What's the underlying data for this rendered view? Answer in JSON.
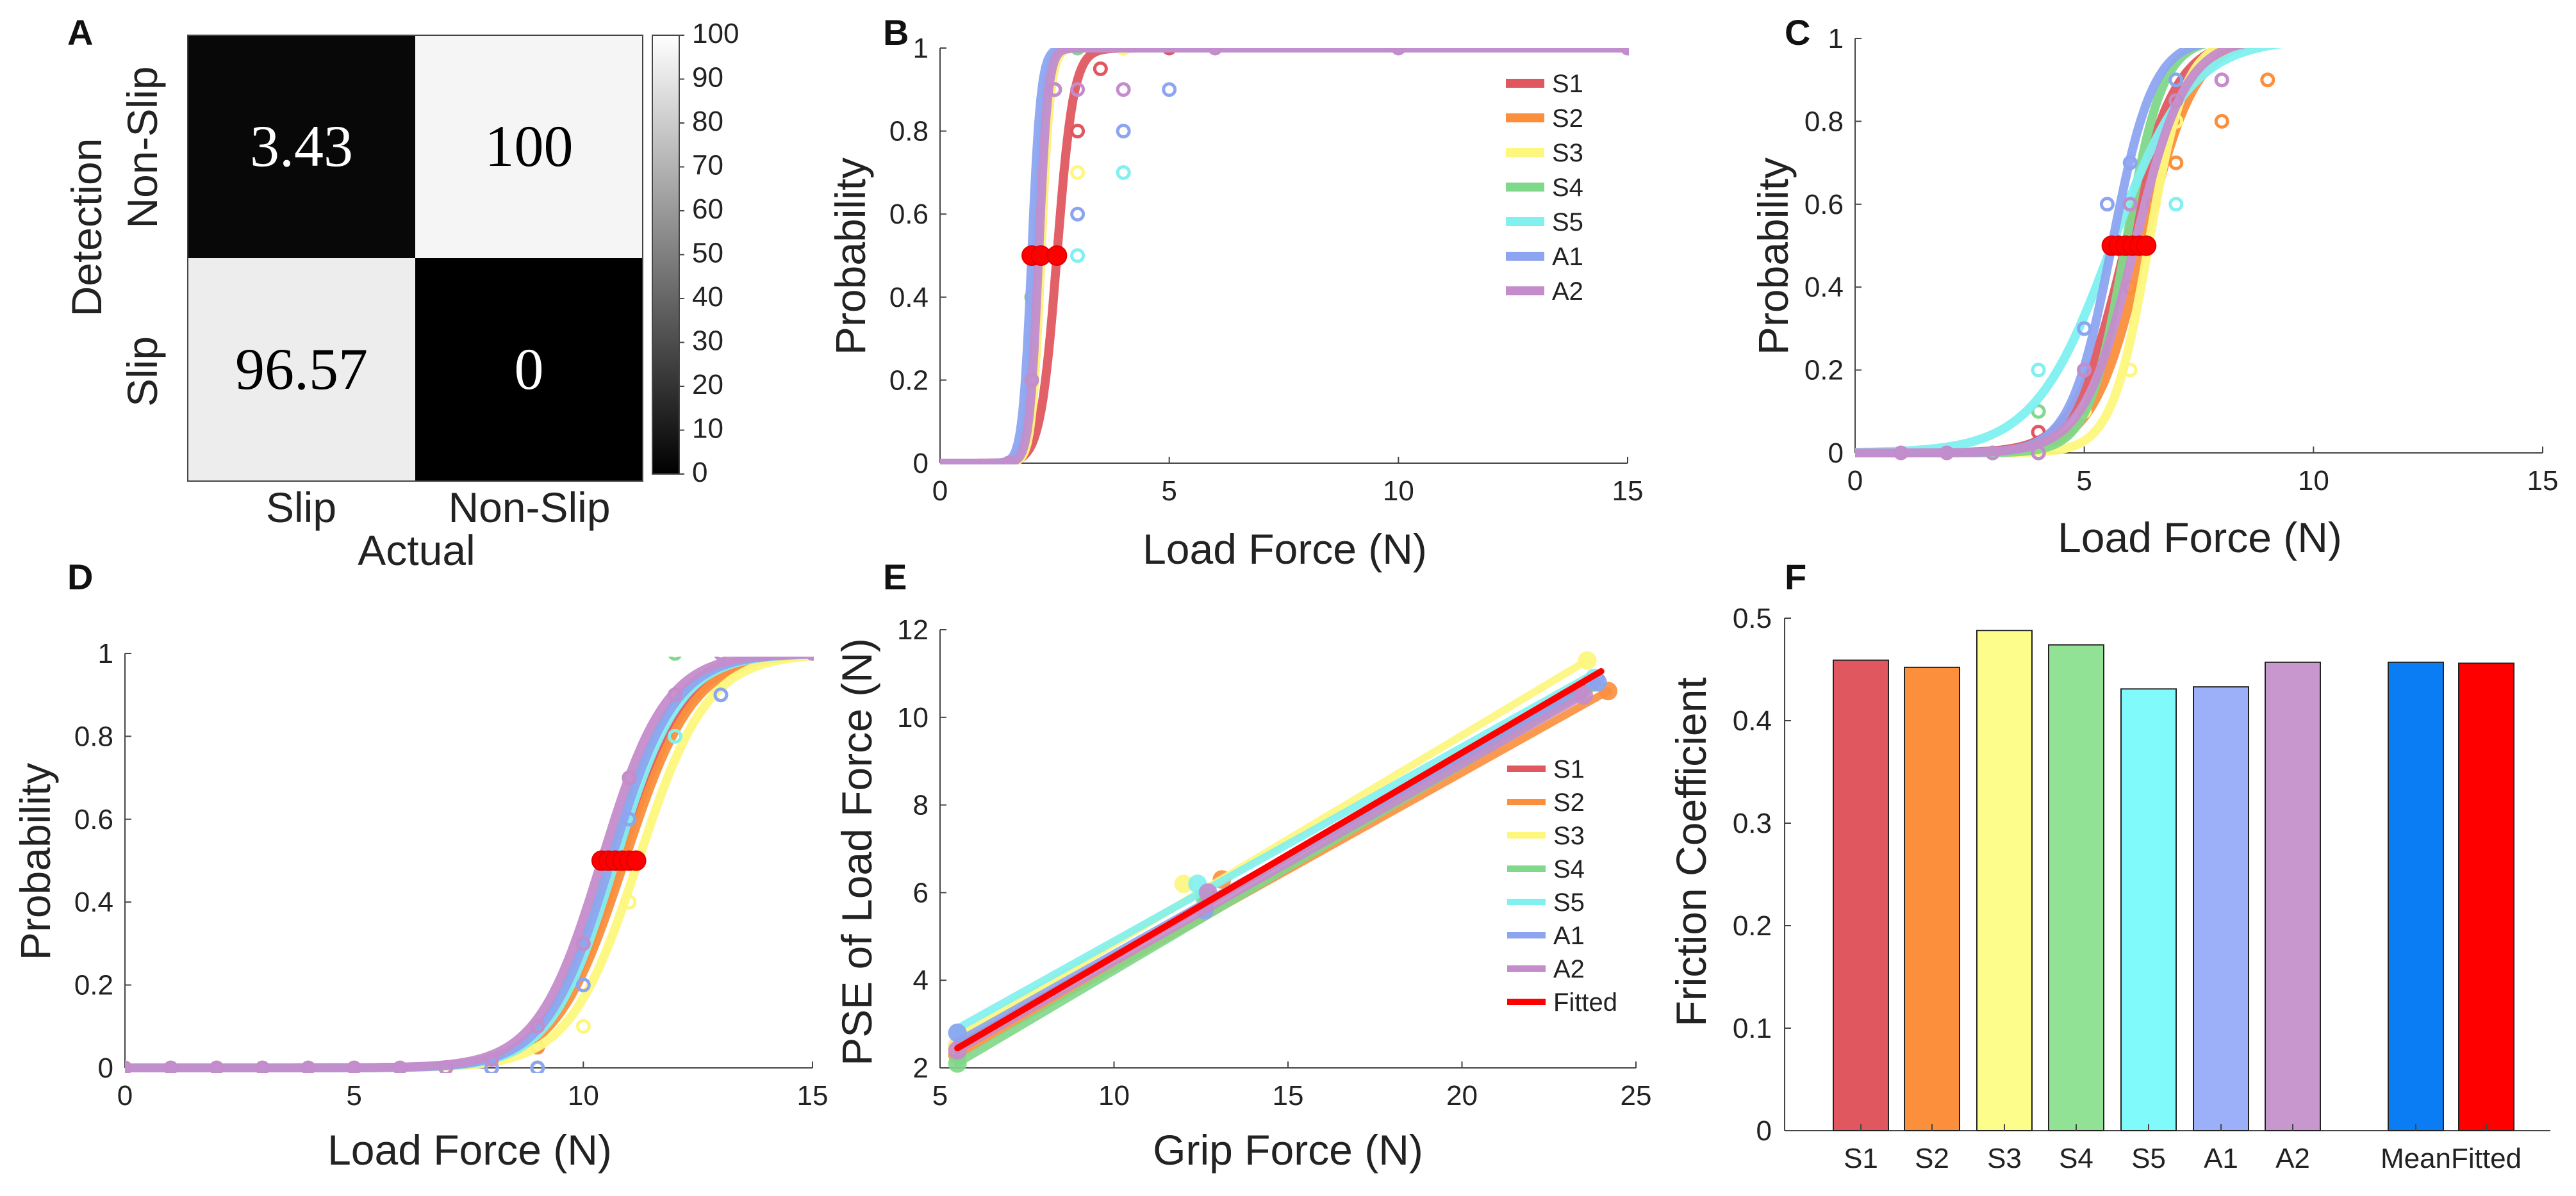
{
  "chart_data": [
    {
      "panel": "A",
      "type": "heatmap",
      "row_labels": [
        "Non-Slip",
        "Slip"
      ],
      "col_labels": [
        "Slip",
        "Non-Slip"
      ],
      "values": [
        [
          3.43,
          100
        ],
        [
          96.57,
          0
        ]
      ],
      "value_text": [
        [
          "3.43",
          "100"
        ],
        [
          "96.57",
          "0"
        ]
      ],
      "xlabel": "Actual",
      "ylabel": "Detection",
      "colorbar_ticks": [
        "100",
        "90",
        "80",
        "70",
        "60",
        "50",
        "40",
        "30",
        "20",
        "10",
        "0"
      ],
      "colorbar_range": [
        0,
        100
      ]
    },
    {
      "panel": "B",
      "type": "line",
      "xlabel": "Load Force (N)",
      "ylabel": "Probability",
      "xlim": [
        0,
        15
      ],
      "ylim": [
        0,
        1
      ],
      "xticks": [
        "0",
        "5",
        "10",
        "15"
      ],
      "yticks": [
        "0",
        "0.2",
        "0.4",
        "0.6",
        "0.8",
        "1"
      ],
      "legend_position": "top-right",
      "series": [
        {
          "name": "S1",
          "color": "#e0575f",
          "mu": 2.55,
          "s": 0.18,
          "x": [
            2,
            2.5,
            3,
            3.5,
            4,
            5
          ],
          "y": [
            0.2,
            0.5,
            0.8,
            0.95,
            1,
            1
          ]
        },
        {
          "name": "S2",
          "color": "#fb8f3c",
          "mu": 2.2,
          "s": 0.1,
          "x": [
            1.5,
            2,
            2.5,
            3,
            4
          ],
          "y": [
            0,
            0.4,
            0.9,
            1,
            1
          ]
        },
        {
          "name": "S3",
          "color": "#fdf77d",
          "mu": 2.2,
          "s": 0.1,
          "x": [
            1.5,
            2,
            2.5,
            3,
            4
          ],
          "y": [
            0,
            0.3,
            0.9,
            0.7,
            1
          ]
        },
        {
          "name": "S4",
          "color": "#80d88a",
          "mu": 2.1,
          "s": 0.1,
          "x": [
            1.5,
            2,
            2.5,
            3
          ],
          "y": [
            0,
            0.4,
            0.9,
            1
          ]
        },
        {
          "name": "S5",
          "color": "#80f0f0",
          "mu": 2.1,
          "s": 0.1,
          "x": [
            1.5,
            2,
            3,
            4
          ],
          "y": [
            0,
            0.3,
            0.5,
            0.7
          ]
        },
        {
          "name": "A1",
          "color": "#8da4f0",
          "mu": 2.0,
          "s": 0.1,
          "x": [
            1.5,
            2,
            2.5,
            3,
            4,
            5
          ],
          "y": [
            0,
            0.5,
            0.9,
            0.6,
            0.8,
            0.9
          ]
        },
        {
          "name": "A2",
          "color": "#c48ccb",
          "mu": 2.15,
          "s": 0.1,
          "x": [
            1.5,
            2,
            2.5,
            3,
            4,
            6,
            10,
            15
          ],
          "y": [
            0,
            0.2,
            0.9,
            0.9,
            0.9,
            1,
            1,
            1
          ]
        }
      ],
      "pse_markers": [
        2.0,
        2.2,
        2.55
      ]
    },
    {
      "panel": "C",
      "type": "line",
      "xlabel": "Load Force (N)",
      "ylabel": "Probability",
      "xlim": [
        0,
        15
      ],
      "ylim": [
        0,
        1
      ],
      "xticks": [
        "0",
        "5",
        "10",
        "15"
      ],
      "yticks": [
        "0",
        "0.2",
        "0.4",
        "0.6",
        "0.8",
        "1"
      ],
      "series": [
        {
          "name": "S1",
          "color": "#e0575f",
          "mu": 5.9,
          "s": 0.55,
          "x": [
            3,
            4,
            5,
            6,
            7,
            8,
            9
          ],
          "y": [
            0,
            0.05,
            0.2,
            0.5,
            0.8,
            0.9,
            1
          ]
        },
        {
          "name": "S2",
          "color": "#fb8f3c",
          "mu": 6.3,
          "s": 0.55,
          "x": [
            4,
            5,
            6,
            6.5,
            7,
            8,
            9
          ],
          "y": [
            0,
            0.1,
            0.4,
            0.6,
            0.7,
            0.8,
            0.9
          ]
        },
        {
          "name": "S3",
          "color": "#fdf77d",
          "mu": 6.4,
          "s": 0.4,
          "x": [
            4,
            5,
            6,
            7,
            8
          ],
          "y": [
            0,
            0.1,
            0.2,
            0.8,
            1
          ]
        },
        {
          "name": "S4",
          "color": "#80d88a",
          "mu": 5.9,
          "s": 0.4,
          "x": [
            4,
            5,
            6,
            7,
            8
          ],
          "y": [
            0.1,
            0.2,
            0.6,
            0.9,
            1
          ]
        },
        {
          "name": "S5",
          "color": "#80f0f0",
          "mu": 5.6,
          "s": 0.85,
          "x": [
            3,
            4,
            5,
            6,
            7,
            8
          ],
          "y": [
            0,
            0.2,
            0.3,
            0.6,
            0.6,
            1
          ]
        },
        {
          "name": "A1",
          "color": "#8da4f0",
          "mu": 5.6,
          "s": 0.45,
          "x": [
            4,
            5,
            5.5,
            6,
            7
          ],
          "y": [
            0,
            0.3,
            0.6,
            0.7,
            0.9
          ]
        },
        {
          "name": "A2",
          "color": "#c48ccb",
          "mu": 6.1,
          "s": 0.55,
          "x": [
            1,
            2,
            3,
            4,
            5,
            6,
            7,
            8,
            9
          ],
          "y": [
            0,
            0,
            0,
            0,
            0.2,
            0.6,
            0.85,
            0.9,
            1
          ]
        }
      ],
      "pse_markers": [
        5.6,
        5.75,
        5.9,
        6.05,
        6.2,
        6.35
      ]
    },
    {
      "panel": "D",
      "type": "line",
      "xlabel": "Load Force (N)",
      "ylabel": "Probability",
      "xlim": [
        0,
        15
      ],
      "ylim": [
        0,
        1
      ],
      "xticks": [
        "0",
        "5",
        "10",
        "15"
      ],
      "yticks": [
        "0",
        "0.2",
        "0.4",
        "0.6",
        "0.8",
        "1"
      ],
      "series": [
        {
          "name": "S1",
          "color": "#e0575f",
          "mu": 10.8,
          "s": 0.75,
          "x": [
            8,
            9,
            10,
            11,
            12,
            13
          ],
          "y": [
            0,
            0.05,
            0.3,
            0.6,
            0.9,
            1
          ]
        },
        {
          "name": "S2",
          "color": "#fb8f3c",
          "mu": 10.9,
          "s": 0.75,
          "x": [
            8,
            9,
            10,
            11,
            12
          ],
          "y": [
            0,
            0.05,
            0.3,
            0.6,
            0.9
          ]
        },
        {
          "name": "S3",
          "color": "#fdf77d",
          "mu": 11.2,
          "s": 0.75,
          "x": [
            9,
            10,
            11,
            12,
            13,
            14
          ],
          "y": [
            0,
            0.1,
            0.4,
            0.8,
            0.9,
            1
          ]
        },
        {
          "name": "S4",
          "color": "#80d88a",
          "mu": 10.6,
          "s": 0.7,
          "x": [
            9,
            10,
            11,
            12,
            13
          ],
          "y": [
            0,
            0.3,
            0.7,
            1,
            1
          ]
        },
        {
          "name": "S5",
          "color": "#80f0f0",
          "mu": 10.7,
          "s": 0.7,
          "x": [
            8,
            9,
            10,
            11,
            12,
            13
          ],
          "y": [
            0,
            0.1,
            0.3,
            0.6,
            0.8,
            0.9
          ]
        },
        {
          "name": "A1",
          "color": "#8da4f0",
          "mu": 10.6,
          "s": 0.7,
          "x": [
            7,
            8,
            9,
            10,
            11,
            13
          ],
          "y": [
            0,
            0,
            0,
            0.2,
            0.6,
            0.9
          ]
        },
        {
          "name": "A2",
          "color": "#c48ccb",
          "mu": 10.4,
          "s": 0.7,
          "x": [
            0,
            1,
            2,
            3,
            4,
            5,
            6,
            7,
            8,
            9,
            10,
            11,
            12,
            13,
            14,
            15
          ],
          "y": [
            0,
            0,
            0,
            0,
            0,
            0,
            0,
            0,
            0.02,
            0.1,
            0.3,
            0.7,
            0.9,
            1,
            1,
            1
          ]
        }
      ],
      "pse_markers": [
        10.4,
        10.55,
        10.7,
        10.85,
        11.0,
        11.15
      ]
    },
    {
      "panel": "E",
      "type": "line",
      "xlabel": "Grip Force (N)",
      "ylabel": "PSE of Load Force (N)",
      "xlim": [
        5,
        25
      ],
      "ylim": [
        2,
        12
      ],
      "xticks": [
        "5",
        "10",
        "15",
        "20",
        "25"
      ],
      "yticks": [
        "2",
        "4",
        "6",
        "8",
        "10",
        "12"
      ],
      "legend_position": "bottom-right",
      "series": [
        {
          "name": "S1",
          "color": "#e0575f",
          "line": [
            [
              5.5,
              2.5
            ],
            [
              24.0,
              10.9
            ]
          ],
          "points": [
            [
              5.5,
              2.5
            ],
            [
              12.7,
              5.9
            ],
            [
              23.7,
              10.8
            ]
          ]
        },
        {
          "name": "S2",
          "color": "#fb8f3c",
          "line": [
            [
              5.5,
              2.3
            ],
            [
              24.2,
              10.6
            ]
          ],
          "points": [
            [
              5.5,
              2.3
            ],
            [
              13.1,
              6.3
            ],
            [
              24.2,
              10.6
            ]
          ]
        },
        {
          "name": "S3",
          "color": "#fdf77d",
          "line": [
            [
              5.5,
              2.7
            ],
            [
              23.6,
              11.3
            ]
          ],
          "points": [
            [
              5.5,
              2.5
            ],
            [
              12.0,
              6.2
            ],
            [
              23.6,
              11.3
            ]
          ]
        },
        {
          "name": "S4",
          "color": "#80d88a",
          "line": [
            [
              5.5,
              2.1
            ],
            [
              23.8,
              10.7
            ]
          ],
          "points": [
            [
              5.5,
              2.1
            ],
            [
              12.6,
              5.9
            ],
            [
              23.8,
              10.8
            ]
          ]
        },
        {
          "name": "S5",
          "color": "#80f0f0",
          "line": [
            [
              5.5,
              2.9
            ],
            [
              23.8,
              11.0
            ]
          ],
          "points": [
            [
              5.5,
              2.8
            ],
            [
              12.4,
              6.2
            ],
            [
              23.8,
              10.9
            ]
          ]
        },
        {
          "name": "A1",
          "color": "#8da4f0",
          "line": [
            [
              5.5,
              2.6
            ],
            [
              23.9,
              10.8
            ]
          ],
          "points": [
            [
              5.5,
              2.8
            ],
            [
              12.6,
              5.6
            ],
            [
              23.9,
              10.8
            ]
          ]
        },
        {
          "name": "A2",
          "color": "#c48ccb",
          "line": [
            [
              5.5,
              2.4
            ],
            [
              23.5,
              10.5
            ]
          ],
          "points": [
            [
              5.5,
              2.4
            ],
            [
              12.7,
              6.0
            ],
            [
              23.5,
              10.5
            ]
          ]
        },
        {
          "name": "Fitted",
          "color": "#ff0000",
          "line": [
            [
              5.5,
              2.45
            ],
            [
              24.0,
              11.05
            ]
          ],
          "points": []
        }
      ]
    },
    {
      "panel": "F",
      "type": "bar",
      "ylabel": "Friction Coefficient",
      "ylim": [
        0,
        0.5
      ],
      "yticks": [
        "0",
        "0.1",
        "0.2",
        "0.3",
        "0.4",
        "0.5"
      ],
      "categories": [
        "S1",
        "S2",
        "S3",
        "S4",
        "S5",
        "A1",
        "A2",
        "Mean",
        "Fitted"
      ],
      "values": [
        0.459,
        0.452,
        0.488,
        0.474,
        0.431,
        0.433,
        0.457,
        0.457,
        0.456
      ],
      "colors": [
        "#e0575f",
        "#fb8f3c",
        "#fdfd8c",
        "#92e296",
        "#80fafa",
        "#9bb0f8",
        "#c897cd",
        "#0a7cf4",
        "#ff0000"
      ]
    }
  ]
}
